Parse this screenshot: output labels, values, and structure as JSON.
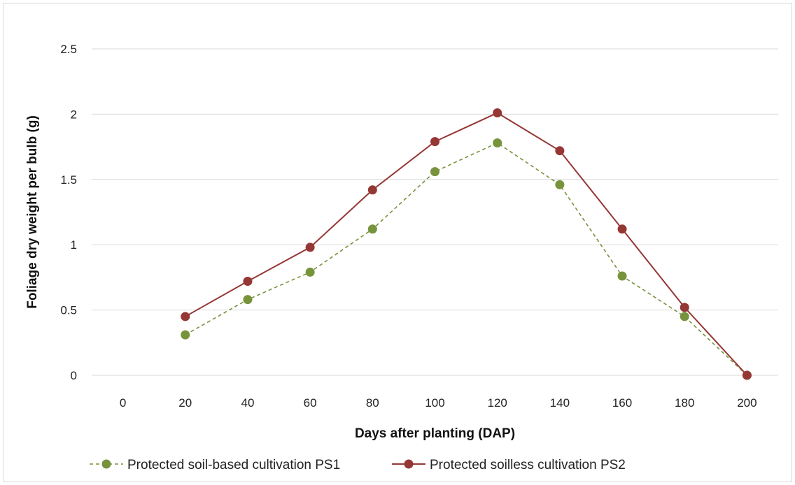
{
  "chart_data": {
    "type": "line",
    "title": "",
    "xlabel": "Days after planting (DAP)",
    "ylabel": "Foliage dry weight per bulb (g)",
    "categories": [
      "0",
      "20",
      "40",
      "60",
      "80",
      "100",
      "120",
      "140",
      "160",
      "180",
      "200"
    ],
    "y_ticks": [
      "0",
      "0.5",
      "1",
      "1.5",
      "2",
      "2.5"
    ],
    "ylim": [
      0,
      2.5
    ],
    "grid": "horizontal",
    "legend_position": "bottom",
    "series": [
      {
        "name": "Protected soil-based cultivation PS1",
        "color": "#77933c",
        "line_style": "dashed",
        "values": [
          null,
          0.31,
          0.58,
          0.79,
          1.12,
          1.56,
          1.78,
          1.46,
          0.76,
          0.45,
          0.0
        ]
      },
      {
        "name": "Protected soilless cultivation PS2",
        "color": "#953735",
        "line_style": "solid",
        "values": [
          null,
          0.45,
          0.72,
          0.98,
          1.42,
          1.79,
          2.01,
          1.72,
          1.12,
          0.52,
          0.0
        ]
      }
    ]
  }
}
